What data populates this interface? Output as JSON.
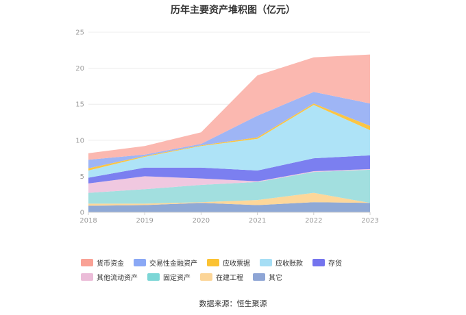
{
  "chart_data": {
    "type": "area",
    "stacked": true,
    "title": "历年主要资产堆积图（亿元）",
    "categories": [
      "2018",
      "2019",
      "2020",
      "2021",
      "2022",
      "2023"
    ],
    "ylim": [
      0,
      25
    ],
    "yticks": [
      "0",
      "5",
      "10",
      "15",
      "20",
      "25"
    ],
    "xlabel": "",
    "ylabel": "",
    "legend_position": "bottom",
    "series": [
      {
        "name": "其它",
        "color": "#8fa9d6",
        "values": [
          0.9,
          1.0,
          1.3,
          1.0,
          1.4,
          1.3
        ]
      },
      {
        "name": "在建工程",
        "color": "#fdd79a",
        "values": [
          0.3,
          0.2,
          0.1,
          0.7,
          1.3,
          0.0
        ]
      },
      {
        "name": "固定资产",
        "color": "#a2dfdf",
        "values": [
          1.5,
          2.0,
          2.4,
          2.5,
          2.9,
          4.6
        ]
      },
      {
        "name": "其他流动资产",
        "color": "#f0c8e0",
        "values": [
          1.3,
          1.8,
          0.9,
          0.1,
          0.1,
          0.1
        ]
      },
      {
        "name": "存货",
        "color": "#7b7ff0",
        "values": [
          0.8,
          1.2,
          1.5,
          1.5,
          1.8,
          1.9
        ]
      },
      {
        "name": "应收账款",
        "color": "#aee3f7",
        "values": [
          1.0,
          1.5,
          3.0,
          4.4,
          7.4,
          3.5
        ]
      },
      {
        "name": "应收票据",
        "color": "#fbc544",
        "values": [
          0.3,
          0.1,
          0.1,
          0.2,
          0.2,
          0.6
        ]
      },
      {
        "name": "交易性金融资产",
        "color": "#9eb5f5",
        "values": [
          1.2,
          0.2,
          0.2,
          3.0,
          1.6,
          3.1
        ]
      },
      {
        "name": "货币资金",
        "color": "#fbb8b0",
        "values": [
          0.9,
          1.2,
          1.6,
          5.6,
          4.8,
          6.8
        ]
      }
    ]
  },
  "legend": [
    {
      "label": "货币资金",
      "color": "#f9a195"
    },
    {
      "label": "交易性金融资产",
      "color": "#8aa8f5"
    },
    {
      "label": "应收票据",
      "color": "#fbc233"
    },
    {
      "label": "应收账款",
      "color": "#a6def5"
    },
    {
      "label": "存货",
      "color": "#7474ee"
    },
    {
      "label": "其他流动资产",
      "color": "#ebbcd8"
    },
    {
      "label": "固定资产",
      "color": "#7cd6d6"
    },
    {
      "label": "在建工程",
      "color": "#fcd597"
    },
    {
      "label": "其它",
      "color": "#8ea5d5"
    }
  ],
  "source": "数据来源：恒生聚源"
}
